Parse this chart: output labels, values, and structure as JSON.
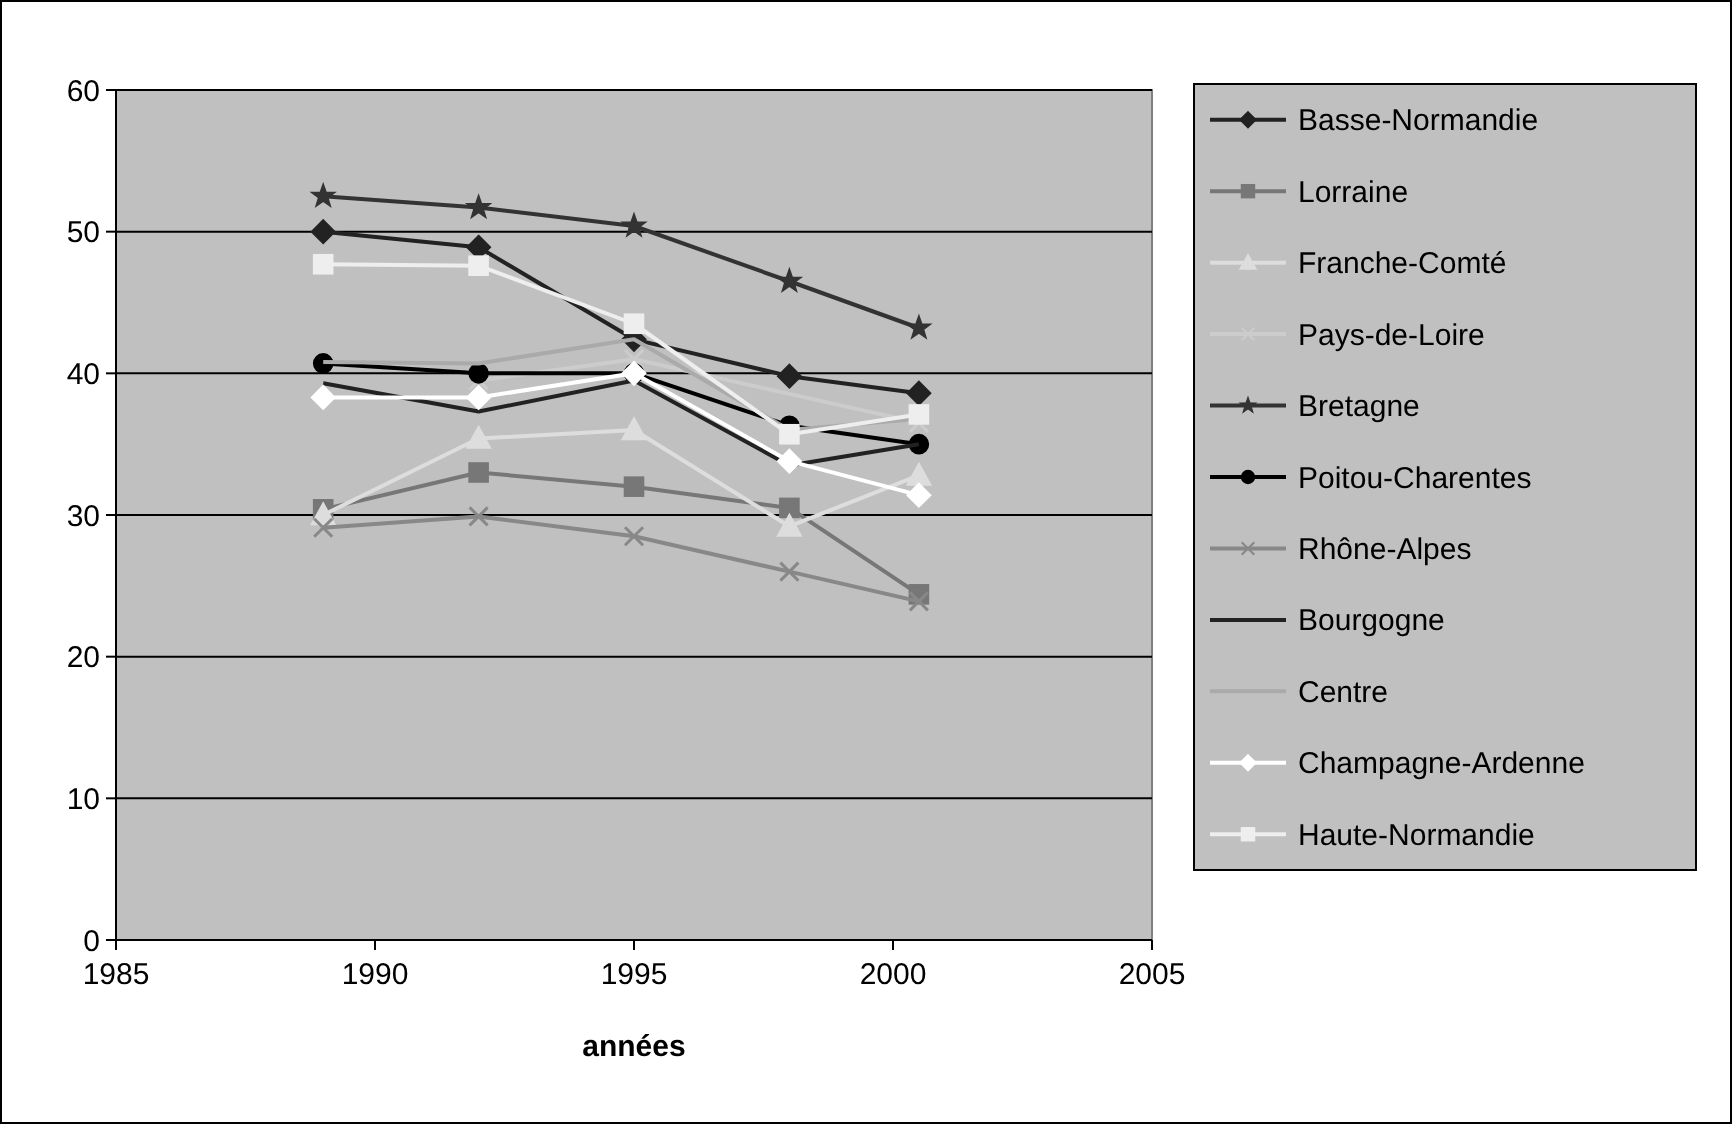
{
  "chart_data": {
    "type": "line",
    "xlabel": "années",
    "xlim": [
      1985,
      2005
    ],
    "xticks": [
      1985,
      1990,
      1995,
      2000,
      2005
    ],
    "ylim": [
      0,
      60
    ],
    "yticks": [
      0,
      10,
      20,
      30,
      40,
      50,
      60
    ],
    "grid": "y",
    "legend": "right",
    "x": [
      1989,
      1992,
      1995,
      1998,
      2000.5
    ],
    "series": [
      {
        "name": "Basse-Normandie",
        "color": "#222222",
        "marker": "diamond",
        "values": [
          50,
          48.9,
          42.4,
          39.8,
          38.6
        ]
      },
      {
        "name": "Lorraine",
        "color": "#777777",
        "marker": "square",
        "values": [
          30.4,
          33,
          32,
          30.5,
          24.4
        ]
      },
      {
        "name": "Franche-Comté",
        "color": "#dddddd",
        "marker": "triangle",
        "values": [
          30,
          35.4,
          36,
          29.2,
          32.8
        ]
      },
      {
        "name": "Pays-de-Loire",
        "color": "#cccccc",
        "marker": "cross",
        "values": [
          null,
          39.5,
          41,
          null,
          36.5
        ]
      },
      {
        "name": "Bretagne",
        "color": "#333333",
        "marker": "star",
        "values": [
          52.5,
          51.7,
          50.4,
          46.5,
          43.2
        ]
      },
      {
        "name": "Poitou-Charentes",
        "color": "#000000",
        "marker": "circle",
        "values": [
          40.7,
          40,
          40,
          36.3,
          35
        ]
      },
      {
        "name": "Rhône-Alpes",
        "color": "#888888",
        "marker": "cross",
        "values": [
          29.1,
          29.9,
          28.5,
          26,
          23.9
        ]
      },
      {
        "name": "Bourgogne",
        "color": "#222222",
        "marker": "none",
        "values": [
          39.3,
          37.3,
          39.5,
          33.5,
          35
        ]
      },
      {
        "name": "Centre",
        "color": "#aaaaaa",
        "marker": "none",
        "values": [
          40.8,
          40.7,
          42.4,
          36,
          36.8
        ]
      },
      {
        "name": "Champagne-Ardenne",
        "color": "#ffffff",
        "marker": "diamond",
        "values": [
          38.3,
          38.3,
          40,
          33.8,
          31.4
        ]
      },
      {
        "name": "Haute-Normandie",
        "color": "#eeeeee",
        "marker": "square",
        "values": [
          47.7,
          47.6,
          43.5,
          35.7,
          37.1
        ]
      }
    ]
  }
}
